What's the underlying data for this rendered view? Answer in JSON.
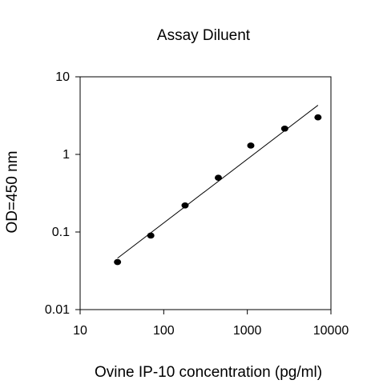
{
  "chart_data": {
    "type": "scatter",
    "title": "Assay Diluent",
    "xlabel": "Ovine IP-10 concentration (pg/ml)",
    "ylabel": "OD=450 nm",
    "x_scale": "log",
    "y_scale": "log",
    "xlim": [
      10,
      10000
    ],
    "ylim": [
      0.01,
      10
    ],
    "x_ticks": [
      10,
      100,
      1000,
      10000
    ],
    "x_tick_labels": [
      "10",
      "100",
      "1000",
      "10000"
    ],
    "y_ticks": [
      0.01,
      0.1,
      1,
      10
    ],
    "y_tick_labels": [
      "0.01",
      "0.1",
      "1",
      "10"
    ],
    "grid": false,
    "series": [
      {
        "points": [
          {
            "x": 28,
            "y": 0.041
          },
          {
            "x": 70,
            "y": 0.09
          },
          {
            "x": 180,
            "y": 0.22
          },
          {
            "x": 450,
            "y": 0.5
          },
          {
            "x": 1100,
            "y": 1.3
          },
          {
            "x": 2800,
            "y": 2.15
          },
          {
            "x": 7000,
            "y": 3.0
          }
        ],
        "marker_color": "#000000"
      }
    ],
    "fit_line": {
      "x": [
        28,
        7000
      ],
      "y": [
        0.046,
        4.3
      ],
      "color": "#000000"
    }
  }
}
